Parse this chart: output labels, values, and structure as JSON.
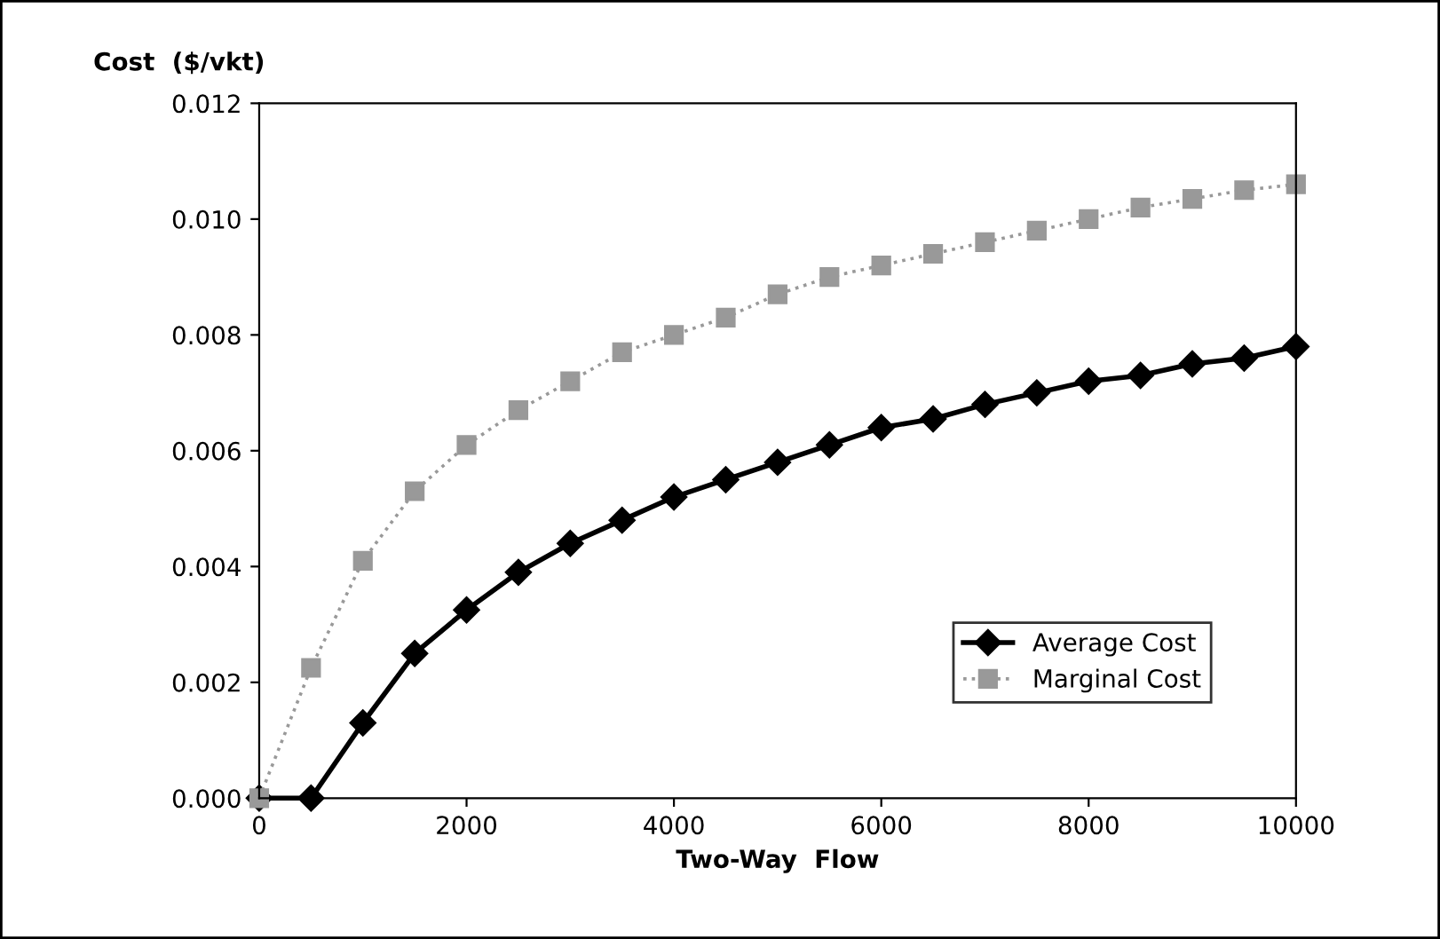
{
  "chart_data": {
    "type": "line",
    "ylabel": "Cost  ($/vkt)",
    "xlabel": "Two-Way  Flow",
    "x": [
      0,
      500,
      1000,
      1500,
      2000,
      2500,
      3000,
      3500,
      4000,
      4500,
      5000,
      5500,
      6000,
      6500,
      7000,
      7500,
      8000,
      8500,
      9000,
      9500,
      10000
    ],
    "series": [
      {
        "name": "Average Cost",
        "color": "#000000",
        "marker": "diamond",
        "line_style": "solid",
        "values": [
          0,
          0,
          0.0013,
          0.0025,
          0.00325,
          0.0039,
          0.0044,
          0.0048,
          0.0052,
          0.0055,
          0.0058,
          0.0061,
          0.0064,
          0.00655,
          0.0068,
          0.007,
          0.0072,
          0.0073,
          0.0075,
          0.0076,
          0.0078
        ]
      },
      {
        "name": "Marginal Cost",
        "color": "#999999",
        "marker": "square",
        "line_style": "dotted",
        "values": [
          0,
          0.00225,
          0.0041,
          0.0053,
          0.0061,
          0.0067,
          0.0072,
          0.0077,
          0.008,
          0.0083,
          0.0087,
          0.009,
          0.0092,
          0.0094,
          0.0096,
          0.0098,
          0.01,
          0.0102,
          0.01035,
          0.0105,
          0.0106
        ]
      }
    ],
    "xlim": [
      0,
      10000
    ],
    "xticks": [
      0,
      2000,
      4000,
      6000,
      8000,
      10000
    ],
    "ylim": [
      0,
      0.012
    ],
    "yticks": [
      {
        "value": 0,
        "label": "0.000"
      },
      {
        "value": 0.002,
        "label": "0.002"
      },
      {
        "value": 0.004,
        "label": "0.004"
      },
      {
        "value": 0.006,
        "label": "0.006"
      },
      {
        "value": 0.008,
        "label": "0.008"
      },
      {
        "value": 0.01,
        "label": "0.010"
      },
      {
        "value": 0.012,
        "label": "0.012"
      }
    ],
    "grid": false,
    "legend": "bottom right"
  }
}
